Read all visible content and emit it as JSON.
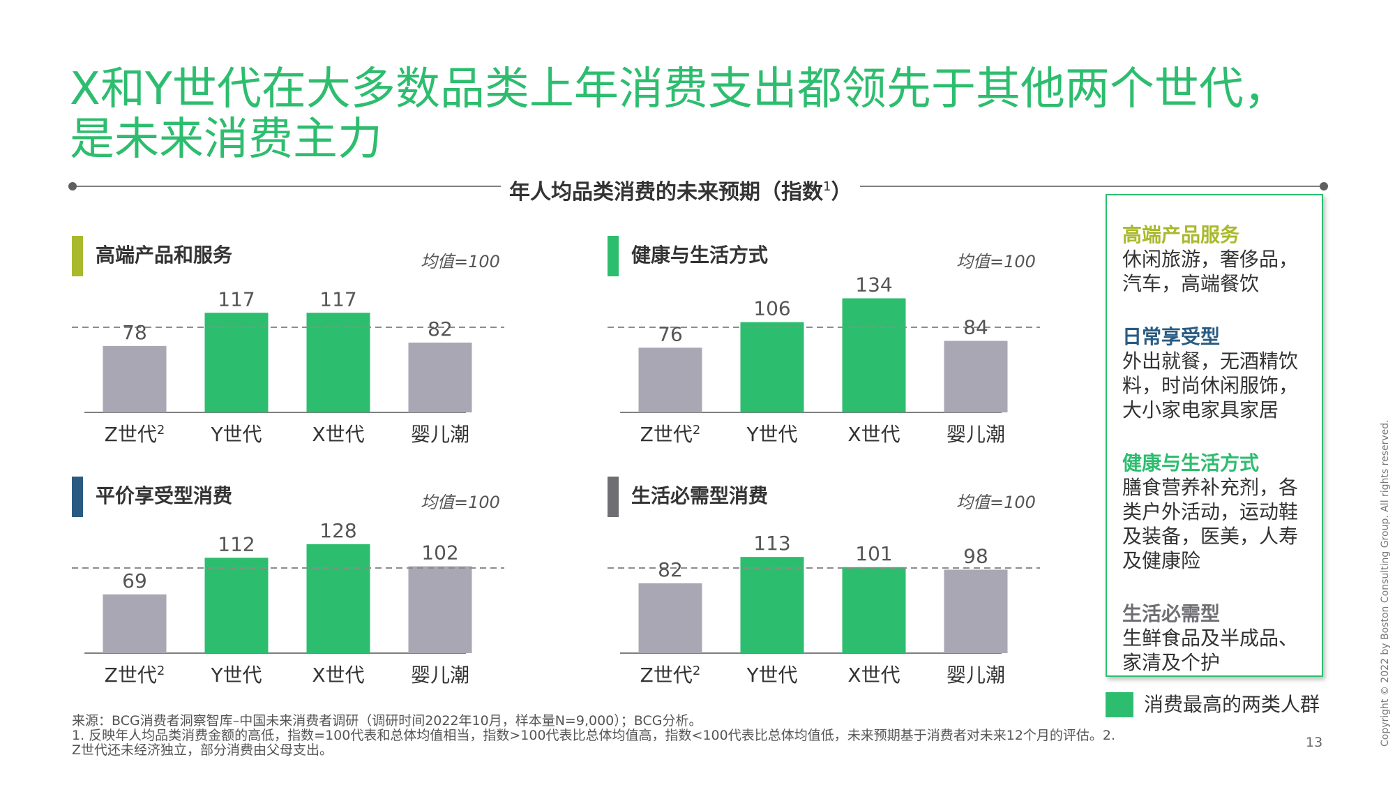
{
  "title_line1": "X和Y世代在大多数品类上年消费支出都领先于其他两个世代，",
  "title_line2": "是未来消费主力",
  "section_title": "年人均品类消费的未来预期（指数",
  "section_title_sup": "1",
  "section_title_end": "）",
  "mean_label": "均值=100",
  "colors": {
    "green": "#2dbd6e",
    "gray": "#a9a7b3",
    "olive": "#a9b92b",
    "navy": "#295b82",
    "darkgray": "#6f6f73"
  },
  "chart_data": [
    {
      "type": "bar",
      "title": "高端产品和服务",
      "categories": [
        "Z世代2",
        "Y世代",
        "X世代",
        "婴儿潮"
      ],
      "values": [
        78,
        117,
        117,
        82
      ],
      "highlight": [
        false,
        true,
        true,
        false
      ],
      "reference_line": 100
    },
    {
      "type": "bar",
      "title": "健康与生活方式",
      "categories": [
        "Z世代2",
        "Y世代",
        "X世代",
        "婴儿潮"
      ],
      "values": [
        76,
        106,
        134,
        84
      ],
      "highlight": [
        false,
        true,
        true,
        false
      ],
      "reference_line": 100
    },
    {
      "type": "bar",
      "title": "平价享受型消费",
      "categories": [
        "Z世代2",
        "Y世代",
        "X世代",
        "婴儿潮"
      ],
      "values": [
        69,
        112,
        128,
        102
      ],
      "highlight": [
        false,
        true,
        true,
        false
      ],
      "reference_line": 100
    },
    {
      "type": "bar",
      "title": "生活必需型消费",
      "categories": [
        "Z世代2",
        "Y世代",
        "X世代",
        "婴儿潮"
      ],
      "values": [
        82,
        113,
        101,
        98
      ],
      "highlight": [
        false,
        true,
        true,
        false
      ],
      "reference_line": 100
    }
  ],
  "legend": {
    "items": [
      {
        "heading": "高端产品服务",
        "text": "休闲旅游，奢侈品，汽车，高端餐饮",
        "color": "#a9b92b"
      },
      {
        "heading": "日常享受型",
        "text": "外出就餐，无酒精饮料，时尚休闲服饰，大小家电家具家居",
        "color": "#295b82"
      },
      {
        "heading": "健康与生活方式",
        "text": "膳食营养补充剂，各类户外活动，运动鞋及装备，医美，人寿及健康险",
        "color": "#2dbd6e"
      },
      {
        "heading": "生活必需型",
        "text": "生鲜食品及半成品、家清及个护",
        "color": "#6f6f73"
      }
    ],
    "key_label": "消费最高的两类人群"
  },
  "notes": {
    "source": "来源：BCG消费者洞察智库–中国未来消费者调研（调研时间2022年10月，样本量N=9,000）；BCG分析。",
    "note1": "1. 反映年人均品类消费金额的高低，指数=100代表和总体均值相当，指数>100代表比总体均值高，指数<100代表比总体均值低，未来预期基于消费者对未来12个月的评估。2. Z世代还未经济独立，部分消费由父母支出。"
  },
  "page_number": "13",
  "copyright": "Copyright © 2022 by Boston Consulting Group. All rights reserved."
}
